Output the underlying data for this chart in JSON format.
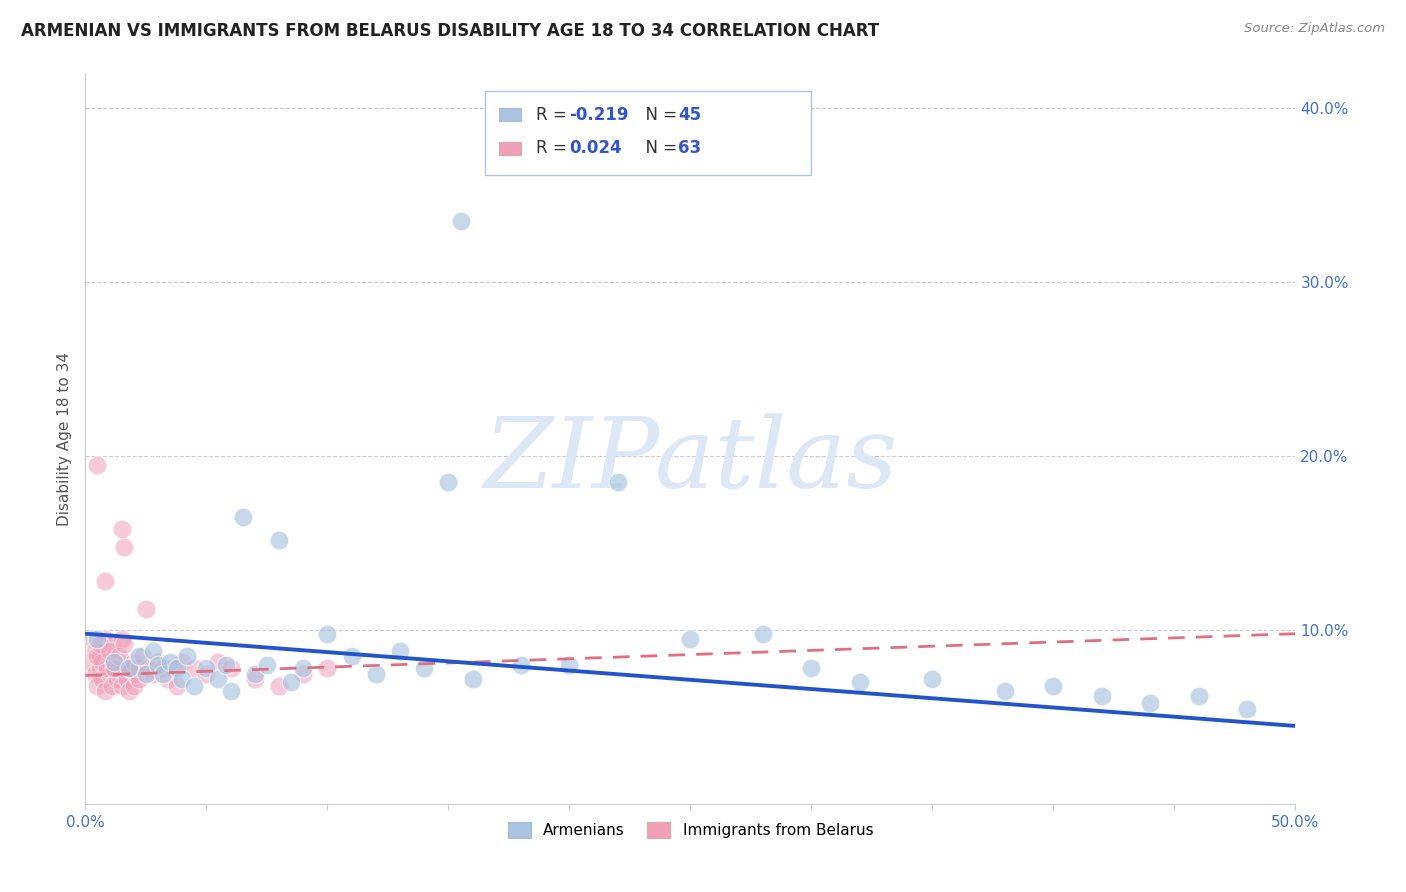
{
  "title": "ARMENIAN VS IMMIGRANTS FROM BELARUS DISABILITY AGE 18 TO 34 CORRELATION CHART",
  "source": "Source: ZipAtlas.com",
  "ylabel": "Disability Age 18 to 34",
  "xlim": [
    0.0,
    0.5
  ],
  "ylim": [
    0.0,
    0.42
  ],
  "xticks": [
    0.0,
    0.05,
    0.1,
    0.15,
    0.2,
    0.25,
    0.3,
    0.35,
    0.4,
    0.45,
    0.5
  ],
  "yticks": [
    0.0,
    0.1,
    0.2,
    0.3,
    0.4
  ],
  "armenians": {
    "color": "#a8c4e0",
    "R": -0.219,
    "N": 45,
    "x": [
      0.005,
      0.012,
      0.018,
      0.022,
      0.025,
      0.028,
      0.03,
      0.032,
      0.035,
      0.038,
      0.04,
      0.042,
      0.045,
      0.05,
      0.055,
      0.058,
      0.06,
      0.065,
      0.07,
      0.075,
      0.08,
      0.085,
      0.09,
      0.1,
      0.11,
      0.12,
      0.13,
      0.14,
      0.15,
      0.16,
      0.18,
      0.2,
      0.22,
      0.25,
      0.28,
      0.3,
      0.32,
      0.35,
      0.38,
      0.4,
      0.42,
      0.44,
      0.46,
      0.48,
      0.155
    ],
    "y": [
      0.095,
      0.082,
      0.078,
      0.085,
      0.075,
      0.088,
      0.08,
      0.075,
      0.082,
      0.078,
      0.072,
      0.085,
      0.068,
      0.078,
      0.072,
      0.08,
      0.065,
      0.165,
      0.075,
      0.08,
      0.152,
      0.07,
      0.078,
      0.098,
      0.085,
      0.075,
      0.088,
      0.078,
      0.185,
      0.072,
      0.08,
      0.08,
      0.185,
      0.095,
      0.098,
      0.078,
      0.07,
      0.072,
      0.065,
      0.068,
      0.062,
      0.058,
      0.062,
      0.055,
      0.335
    ]
  },
  "belarus": {
    "color": "#f0a0b8",
    "R": 0.024,
    "N": 63,
    "x": [
      0.002,
      0.004,
      0.005,
      0.006,
      0.007,
      0.008,
      0.009,
      0.01,
      0.011,
      0.012,
      0.013,
      0.014,
      0.015,
      0.016,
      0.017,
      0.018,
      0.019,
      0.02,
      0.021,
      0.022,
      0.003,
      0.004,
      0.006,
      0.007,
      0.008,
      0.009,
      0.01,
      0.011,
      0.012,
      0.014,
      0.015,
      0.016,
      0.018,
      0.005,
      0.006,
      0.008,
      0.01,
      0.012,
      0.014,
      0.016,
      0.018,
      0.02,
      0.022,
      0.024,
      0.026,
      0.028,
      0.03,
      0.032,
      0.034,
      0.036,
      0.038,
      0.04,
      0.045,
      0.05,
      0.055,
      0.06,
      0.07,
      0.08,
      0.09,
      0.1,
      0.005,
      0.015,
      0.025
    ],
    "y": [
      0.082,
      0.075,
      0.068,
      0.078,
      0.072,
      0.065,
      0.078,
      0.075,
      0.068,
      0.08,
      0.072,
      0.075,
      0.068,
      0.078,
      0.072,
      0.065,
      0.078,
      0.068,
      0.075,
      0.072,
      0.095,
      0.088,
      0.085,
      0.082,
      0.095,
      0.078,
      0.085,
      0.092,
      0.078,
      0.082,
      0.095,
      0.148,
      0.078,
      0.085,
      0.092,
      0.128,
      0.088,
      0.078,
      0.085,
      0.092,
      0.078,
      0.082,
      0.078,
      0.085,
      0.078,
      0.075,
      0.082,
      0.078,
      0.072,
      0.078,
      0.068,
      0.082,
      0.078,
      0.075,
      0.082,
      0.078,
      0.072,
      0.068,
      0.075,
      0.078,
      0.195,
      0.158,
      0.112
    ]
  },
  "arm_line": {
    "x0": 0.0,
    "y0": 0.098,
    "x1": 0.5,
    "y1": 0.045
  },
  "bel_line": {
    "x0": 0.0,
    "y0": 0.074,
    "x1": 0.5,
    "y1": 0.098
  },
  "background_color": "#ffffff",
  "grid_color": "#cccccc",
  "title_fontsize": 12,
  "axis_label_fontsize": 11,
  "tick_fontsize": 11,
  "tick_color": "#4472c4",
  "watermark_text": "ZIPatlas",
  "watermark_color": "#dce8f5",
  "legend_box_color": "#dce8f5",
  "legend_box_edge": "#aabbcc"
}
